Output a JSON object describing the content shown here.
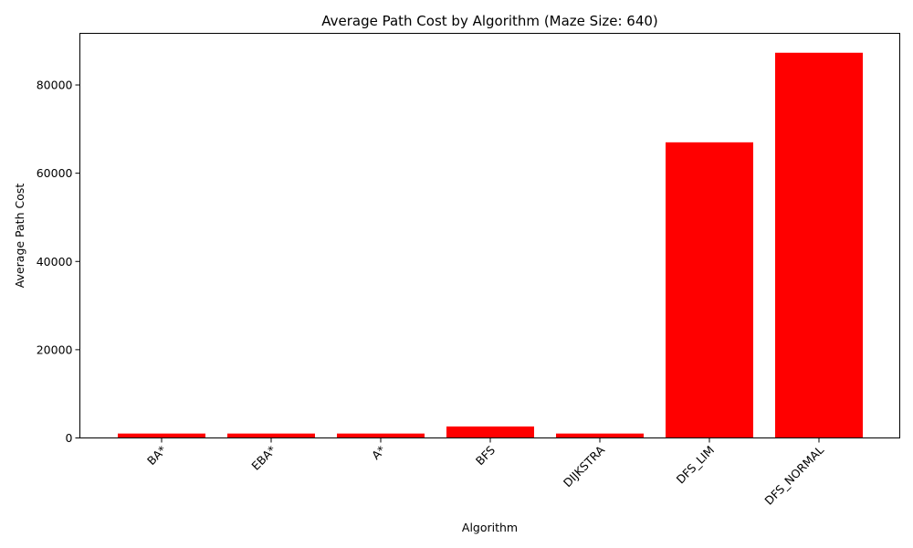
{
  "chart_data": {
    "type": "bar",
    "title": "Average Path Cost by Algorithm (Maze Size: 640)",
    "xlabel": "Algorithm",
    "ylabel": "Average Path Cost",
    "categories": [
      "BA*",
      "EBA*",
      "A*",
      "BFS",
      "DIJKSTRA",
      "DFS_LIM",
      "DFS_NORMAL"
    ],
    "values": [
      1000,
      1000,
      1000,
      2600,
      1000,
      67000,
      87300
    ],
    "ylim": [
      0,
      91700
    ],
    "yticks": [
      0,
      20000,
      40000,
      60000,
      80000
    ],
    "ytick_labels": [
      "0",
      "20000",
      "40000",
      "60000",
      "80000"
    ],
    "bar_color": "#ff0000",
    "grid": false,
    "legend": "none"
  }
}
